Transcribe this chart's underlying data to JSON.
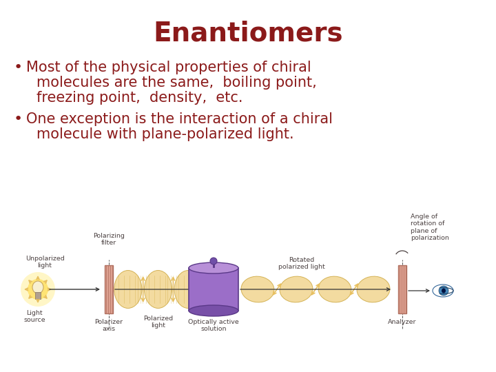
{
  "title": "Enantiomers",
  "title_color": "#8B1A1A",
  "title_fontsize": 28,
  "background_color": "#FFFFFF",
  "bullet_color": "#8B1A1A",
  "bullet_fontsize": 15,
  "bullet1_line1": "Most of the physical properties of chiral",
  "bullet1_line2": "molecules are the same,  boiling point,",
  "bullet1_line3": "freezing point,  density,  etc.",
  "bullet2_line1": "One exception is the interaction of a chiral",
  "bullet2_line2": "molecule with plane-polarized light.",
  "diagram_label_color": "#4A4040",
  "diagram_label_fontsize": 6.8,
  "lc": "#4A4040",
  "arrow_color": "#E8C060",
  "filter_face": "#DDA090",
  "filter_edge": "#B07060",
  "cyl_face": "#9B6EC8",
  "cyl_top": "#B890D8",
  "cyl_bot": "#7850A8",
  "wave_face": "#F0D080",
  "wave_edge": "#C8A030",
  "eye_iris": "#4488BB",
  "eye_pupil": "#001040"
}
